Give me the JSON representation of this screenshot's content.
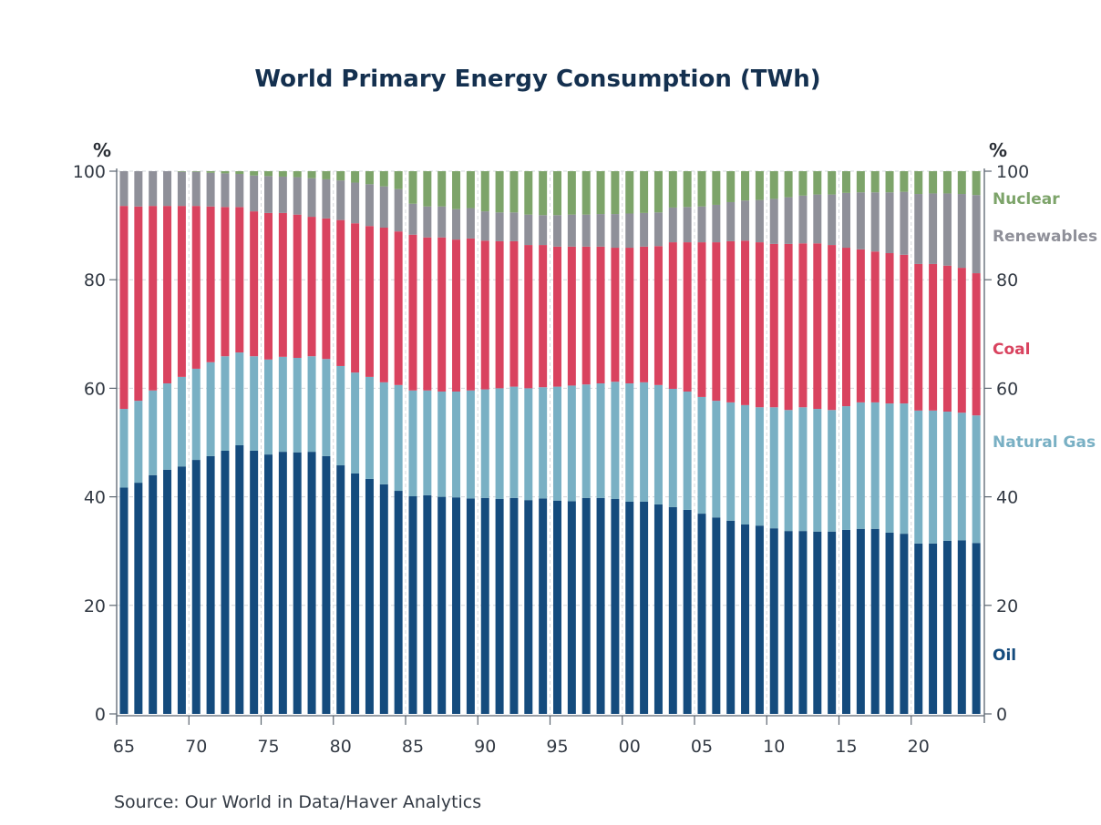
{
  "chart_data": {
    "type": "bar",
    "stacked": true,
    "normalized_percent": true,
    "title": "World Primary Energy Consumption (TWh)",
    "ylabel_left": "%",
    "ylabel_right": "%",
    "xlabel": "",
    "ylim": [
      0,
      100
    ],
    "yticks": [
      0,
      20,
      40,
      60,
      80,
      100
    ],
    "xtick_labels": [
      "65",
      "70",
      "75",
      "80",
      "85",
      "90",
      "95",
      "00",
      "05",
      "10",
      "15",
      "20"
    ],
    "xtick_years": [
      1965,
      1970,
      1975,
      1980,
      1985,
      1990,
      1995,
      2000,
      2005,
      2010,
      2015,
      2020
    ],
    "grid": true,
    "legend_placement": "right",
    "categories": [
      1965,
      1966,
      1967,
      1968,
      1969,
      1970,
      1971,
      1972,
      1973,
      1974,
      1975,
      1976,
      1977,
      1978,
      1979,
      1980,
      1981,
      1982,
      1983,
      1984,
      1985,
      1986,
      1987,
      1988,
      1989,
      1990,
      1991,
      1992,
      1993,
      1994,
      1995,
      1996,
      1997,
      1998,
      1999,
      2000,
      2001,
      2002,
      2003,
      2004,
      2005,
      2006,
      2007,
      2008,
      2009,
      2010,
      2011,
      2012,
      2013,
      2014,
      2015,
      2016,
      2017,
      2018,
      2019,
      2020,
      2021,
      2022,
      2023,
      2024
    ],
    "series": [
      {
        "name": "Oil",
        "color": "#144b7d",
        "label_color": "#144b7d",
        "values": [
          41.7,
          42.6,
          44.0,
          45.0,
          45.6,
          46.8,
          47.5,
          48.5,
          49.5,
          48.5,
          47.8,
          48.3,
          48.2,
          48.3,
          47.5,
          45.8,
          44.3,
          43.3,
          42.3,
          41.1,
          40.1,
          40.3,
          40.0,
          39.9,
          39.7,
          39.8,
          39.6,
          39.8,
          39.4,
          39.7,
          39.3,
          39.2,
          39.8,
          39.8,
          39.6,
          39.1,
          39.1,
          38.6,
          38.1,
          37.6,
          36.9,
          36.2,
          35.6,
          34.9,
          34.7,
          34.2,
          33.7,
          33.7,
          33.6,
          33.6,
          33.9,
          34.1,
          34.1,
          33.4,
          33.2,
          31.4,
          31.4,
          31.9,
          32.0,
          31.5
        ]
      },
      {
        "name": "Natural Gas",
        "color": "#79b0c4",
        "label_color": "#79b0c4",
        "values": [
          14.5,
          15.1,
          15.6,
          15.9,
          16.5,
          16.8,
          17.3,
          17.4,
          17.1,
          17.4,
          17.5,
          17.5,
          17.4,
          17.6,
          17.9,
          18.3,
          18.6,
          18.8,
          18.8,
          19.5,
          19.5,
          19.3,
          19.4,
          19.5,
          19.9,
          20.0,
          20.4,
          20.5,
          20.6,
          20.5,
          21.0,
          21.3,
          20.9,
          21.1,
          21.6,
          21.8,
          22.0,
          22.0,
          21.8,
          21.8,
          21.5,
          21.5,
          21.8,
          22.0,
          21.8,
          22.3,
          22.3,
          22.8,
          22.6,
          22.4,
          22.8,
          23.3,
          23.3,
          23.8,
          24.0,
          24.5,
          24.5,
          23.8,
          23.5,
          23.5
        ]
      },
      {
        "name": "Coal",
        "color": "#d9435f",
        "label_color": "#d9435f",
        "values": [
          37.4,
          35.8,
          34.0,
          32.7,
          31.5,
          30.0,
          28.7,
          27.5,
          26.8,
          26.7,
          27.0,
          26.5,
          26.4,
          25.7,
          25.9,
          26.9,
          27.5,
          27.8,
          28.5,
          28.3,
          28.7,
          28.2,
          28.4,
          28.0,
          28.0,
          27.4,
          27.1,
          26.8,
          26.4,
          26.2,
          25.8,
          25.6,
          25.4,
          25.2,
          24.7,
          25.0,
          25.0,
          25.6,
          27.0,
          27.5,
          28.5,
          29.2,
          29.7,
          30.3,
          30.4,
          30.1,
          30.6,
          30.2,
          30.5,
          30.4,
          29.2,
          28.2,
          27.8,
          27.7,
          27.4,
          27.0,
          27.0,
          26.9,
          26.7,
          26.2
        ]
      },
      {
        "name": "Renewables",
        "color": "#8f9099",
        "label_color": "#8f9099",
        "values": [
          6.4,
          6.5,
          6.4,
          6.4,
          6.3,
          6.3,
          6.2,
          6.2,
          6.1,
          6.6,
          6.8,
          6.7,
          6.9,
          7.1,
          7.2,
          7.3,
          7.5,
          7.7,
          7.6,
          7.8,
          5.7,
          5.7,
          5.7,
          5.6,
          5.6,
          5.4,
          5.3,
          5.3,
          5.6,
          5.5,
          5.8,
          5.9,
          5.9,
          6.0,
          6.2,
          6.3,
          6.2,
          6.2,
          6.4,
          6.5,
          6.6,
          6.9,
          7.2,
          7.4,
          7.8,
          8.3,
          8.6,
          8.8,
          9.0,
          9.3,
          10.1,
          10.5,
          10.9,
          11.2,
          11.6,
          12.9,
          13.0,
          13.3,
          13.6,
          14.4
        ]
      },
      {
        "name": "Nuclear",
        "color": "#7da46a",
        "label_color": "#7da46a",
        "values": [
          0.0,
          0.0,
          0.0,
          0.0,
          0.1,
          0.1,
          0.3,
          0.4,
          0.5,
          0.8,
          0.9,
          1.0,
          1.1,
          1.3,
          1.5,
          1.7,
          2.1,
          2.4,
          2.8,
          3.3,
          6.0,
          6.5,
          6.5,
          7.0,
          6.8,
          7.4,
          7.6,
          7.6,
          8.0,
          8.1,
          7.8,
          8.0,
          8.0,
          7.9,
          7.9,
          7.8,
          7.7,
          7.4,
          6.7,
          6.6,
          6.5,
          6.2,
          5.7,
          5.4,
          5.3,
          5.1,
          4.8,
          4.5,
          4.3,
          4.3,
          4.0,
          3.9,
          3.9,
          3.9,
          3.8,
          4.2,
          4.1,
          4.1,
          4.2,
          4.4
        ]
      }
    ],
    "annotations": [],
    "source": "Source:  Our World in Data/Haver Analytics"
  },
  "legend_order_top_to_bottom": [
    "Nuclear",
    "Renewables",
    "Coal",
    "Natural Gas",
    "Oil"
  ]
}
